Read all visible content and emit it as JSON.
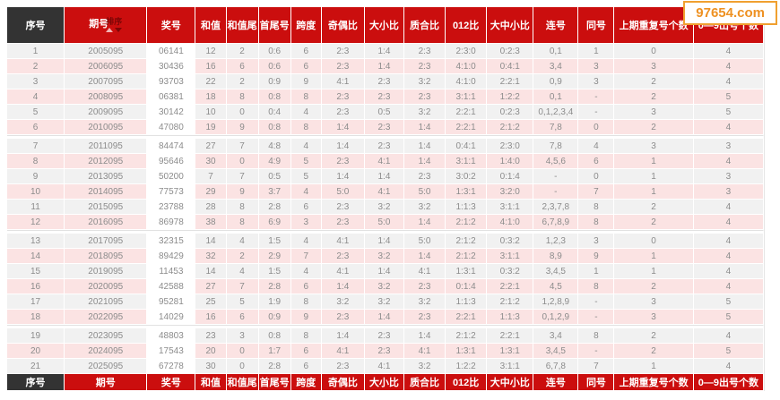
{
  "watermark": "97654.com",
  "colors": {
    "header_red": "#cb0e0e",
    "header_dark": "#333333",
    "row_pink": "#fbe3e3",
    "row_gray": "#f1f1f1",
    "prize_col_bg": "#ffffff",
    "watermark_orange": "#ee9122",
    "data_text": "#8c8c8c"
  },
  "sort_control": {
    "label": "排序"
  },
  "table": {
    "columns": [
      {
        "key": "index",
        "label": "序号",
        "width": 64,
        "dark": true
      },
      {
        "key": "period",
        "label": "期号",
        "width": 92,
        "sortable": true
      },
      {
        "key": "number",
        "label": "奖号",
        "width": 54
      },
      {
        "key": "sum",
        "label": "和值",
        "width": 34
      },
      {
        "key": "sum-tail",
        "label": "和值尾",
        "width": 36
      },
      {
        "key": "min-max",
        "label": "首尾号",
        "width": 36
      },
      {
        "key": "span",
        "label": "跨度",
        "width": 34
      },
      {
        "key": "odd-even",
        "label": "奇偶比",
        "width": 48
      },
      {
        "key": "big-small",
        "label": "大小比",
        "width": 44
      },
      {
        "key": "prime-composite",
        "label": "质合比",
        "width": 46
      },
      {
        "key": "zero-one-two",
        "label": "012比",
        "width": 46
      },
      {
        "key": "big-mid-small",
        "label": "大中小比",
        "width": 52
      },
      {
        "key": "consecutive",
        "label": "连号",
        "width": 50
      },
      {
        "key": "same-digit",
        "label": "同号",
        "width": 40
      },
      {
        "key": "prev-repeat",
        "label": "上期重复号个数",
        "width": 88
      },
      {
        "key": "digit-count",
        "label": "0—9出号个数",
        "width": 78
      }
    ],
    "group_size": 6,
    "rows": [
      [
        "1",
        "2005095",
        "06141",
        "12",
        "2",
        "0:6",
        "6",
        "2:3",
        "1:4",
        "2:3",
        "2:3:0",
        "0:2:3",
        "0,1",
        "1",
        "0",
        "4"
      ],
      [
        "2",
        "2006095",
        "30436",
        "16",
        "6",
        "0:6",
        "6",
        "2:3",
        "1:4",
        "2:3",
        "4:1:0",
        "0:4:1",
        "3,4",
        "3",
        "3",
        "4"
      ],
      [
        "3",
        "2007095",
        "93703",
        "22",
        "2",
        "0:9",
        "9",
        "4:1",
        "2:3",
        "3:2",
        "4:1:0",
        "2:2:1",
        "0,9",
        "3",
        "2",
        "4"
      ],
      [
        "4",
        "2008095",
        "06381",
        "18",
        "8",
        "0:8",
        "8",
        "2:3",
        "2:3",
        "2:3",
        "3:1:1",
        "1:2:2",
        "0,1",
        "-",
        "2",
        "5"
      ],
      [
        "5",
        "2009095",
        "30142",
        "10",
        "0",
        "0:4",
        "4",
        "2:3",
        "0:5",
        "3:2",
        "2:2:1",
        "0:2:3",
        "0,1,2,3,4",
        "-",
        "3",
        "5"
      ],
      [
        "6",
        "2010095",
        "47080",
        "19",
        "9",
        "0:8",
        "8",
        "1:4",
        "2:3",
        "1:4",
        "2:2:1",
        "2:1:2",
        "7,8",
        "0",
        "2",
        "4"
      ],
      [
        "7",
        "2011095",
        "84474",
        "27",
        "7",
        "4:8",
        "4",
        "1:4",
        "2:3",
        "1:4",
        "0:4:1",
        "2:3:0",
        "7,8",
        "4",
        "3",
        "3"
      ],
      [
        "8",
        "2012095",
        "95646",
        "30",
        "0",
        "4:9",
        "5",
        "2:3",
        "4:1",
        "1:4",
        "3:1:1",
        "1:4:0",
        "4,5,6",
        "6",
        "1",
        "4"
      ],
      [
        "9",
        "2013095",
        "50200",
        "7",
        "7",
        "0:5",
        "5",
        "1:4",
        "1:4",
        "2:3",
        "3:0:2",
        "0:1:4",
        "-",
        "0",
        "1",
        "3"
      ],
      [
        "10",
        "2014095",
        "77573",
        "29",
        "9",
        "3:7",
        "4",
        "5:0",
        "4:1",
        "5:0",
        "1:3:1",
        "3:2:0",
        "-",
        "7",
        "1",
        "3"
      ],
      [
        "11",
        "2015095",
        "23788",
        "28",
        "8",
        "2:8",
        "6",
        "2:3",
        "3:2",
        "3:2",
        "1:1:3",
        "3:1:1",
        "2,3,7,8",
        "8",
        "2",
        "4"
      ],
      [
        "12",
        "2016095",
        "86978",
        "38",
        "8",
        "6:9",
        "3",
        "2:3",
        "5:0",
        "1:4",
        "2:1:2",
        "4:1:0",
        "6,7,8,9",
        "8",
        "2",
        "4"
      ],
      [
        "13",
        "2017095",
        "32315",
        "14",
        "4",
        "1:5",
        "4",
        "4:1",
        "1:4",
        "5:0",
        "2:1:2",
        "0:3:2",
        "1,2,3",
        "3",
        "0",
        "4"
      ],
      [
        "14",
        "2018095",
        "89429",
        "32",
        "2",
        "2:9",
        "7",
        "2:3",
        "3:2",
        "1:4",
        "2:1:2",
        "3:1:1",
        "8,9",
        "9",
        "1",
        "4"
      ],
      [
        "15",
        "2019095",
        "11453",
        "14",
        "4",
        "1:5",
        "4",
        "4:1",
        "1:4",
        "4:1",
        "1:3:1",
        "0:3:2",
        "3,4,5",
        "1",
        "1",
        "4"
      ],
      [
        "16",
        "2020095",
        "42588",
        "27",
        "7",
        "2:8",
        "6",
        "1:4",
        "3:2",
        "2:3",
        "0:1:4",
        "2:2:1",
        "4,5",
        "8",
        "2",
        "4"
      ],
      [
        "17",
        "2021095",
        "95281",
        "25",
        "5",
        "1:9",
        "8",
        "3:2",
        "3:2",
        "3:2",
        "1:1:3",
        "2:1:2",
        "1,2,8,9",
        "-",
        "3",
        "5"
      ],
      [
        "18",
        "2022095",
        "14029",
        "16",
        "6",
        "0:9",
        "9",
        "2:3",
        "1:4",
        "2:3",
        "2:2:1",
        "1:1:3",
        "0,1,2,9",
        "-",
        "3",
        "5"
      ],
      [
        "19",
        "2023095",
        "48803",
        "23",
        "3",
        "0:8",
        "8",
        "1:4",
        "2:3",
        "1:4",
        "2:1:2",
        "2:2:1",
        "3,4",
        "8",
        "2",
        "4"
      ],
      [
        "20",
        "2024095",
        "17543",
        "20",
        "0",
        "1:7",
        "6",
        "4:1",
        "2:3",
        "4:1",
        "1:3:1",
        "1:3:1",
        "3,4,5",
        "-",
        "2",
        "5"
      ],
      [
        "21",
        "2025095",
        "67278",
        "30",
        "0",
        "2:8",
        "6",
        "2:3",
        "4:1",
        "3:2",
        "1:2:2",
        "3:1:1",
        "6,7,8",
        "7",
        "1",
        "4"
      ]
    ]
  }
}
